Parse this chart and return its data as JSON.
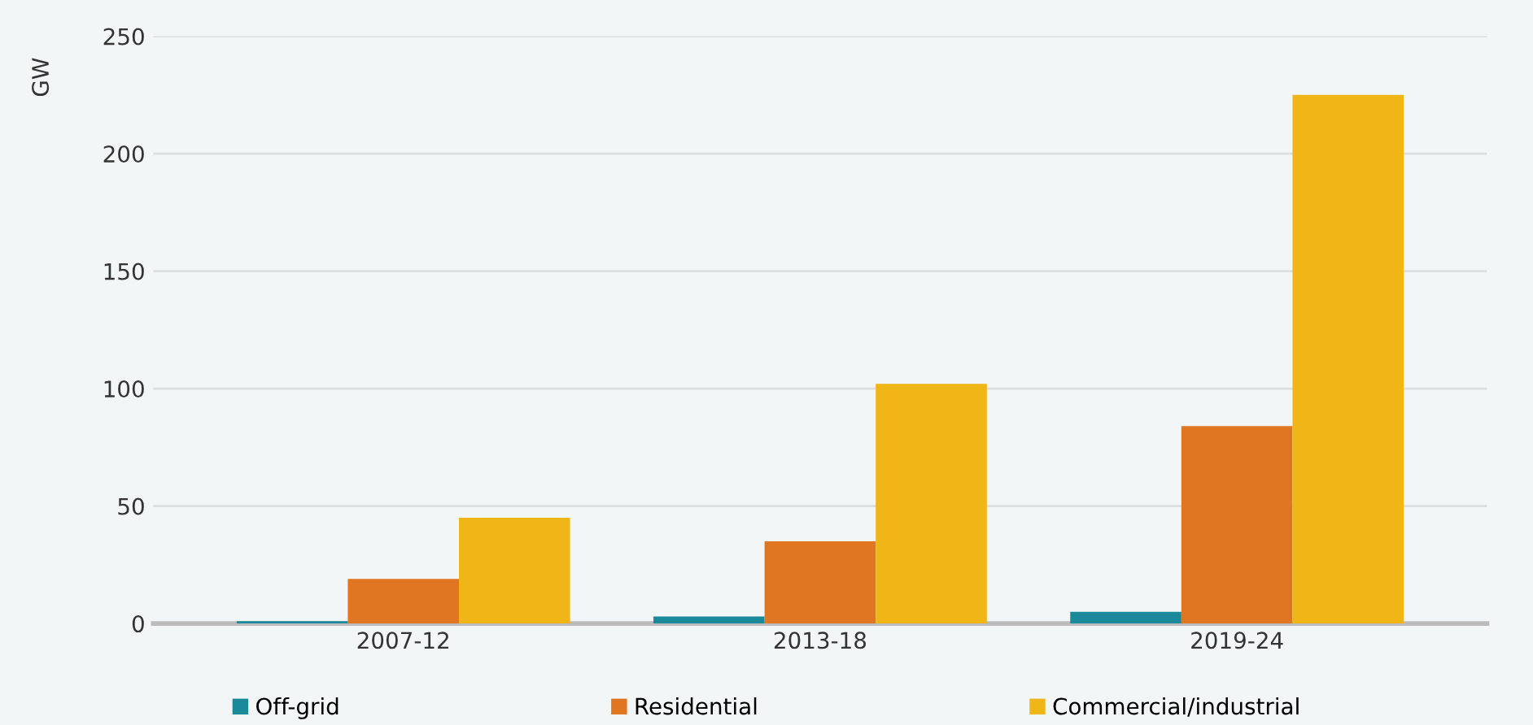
{
  "chart_data": {
    "type": "bar",
    "ylabel": "GW",
    "categories": [
      "2007-12",
      "2013-18",
      "2019-24"
    ],
    "series": [
      {
        "name": "Off-grid",
        "color": "#1a8a9a",
        "values": [
          1,
          3,
          5
        ]
      },
      {
        "name": "Residential",
        "color": "#e07522",
        "values": [
          19,
          35,
          84
        ]
      },
      {
        "name": "Commercial/industrial",
        "color": "#f0b516",
        "values": [
          45,
          102,
          225
        ]
      }
    ],
    "ylim": [
      0,
      250
    ],
    "yticks": [
      0,
      50,
      100,
      150,
      200,
      250
    ],
    "grid": "y",
    "legend": "bottom"
  }
}
